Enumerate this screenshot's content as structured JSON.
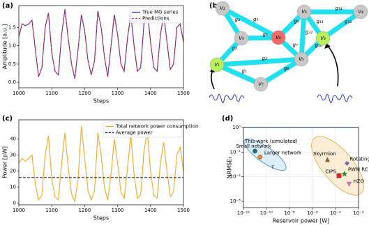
{
  "panels": [
    "(a)",
    "(b)",
    "(c)",
    "(d)"
  ],
  "chart_data": [
    {
      "type": "line",
      "xlabel": "Steps",
      "ylabel": "Amplitude [a.u.]",
      "legend": "upper right",
      "x": [
        1000,
        1010,
        1020,
        1030,
        1040,
        1050,
        1060,
        1070,
        1080,
        1090,
        1100,
        1110,
        1120,
        1130,
        1140,
        1150,
        1160,
        1170,
        1180,
        1190,
        1200,
        1210,
        1220,
        1230,
        1240,
        1250,
        1260,
        1270,
        1280,
        1290,
        1300,
        1310,
        1320,
        1330,
        1340,
        1350,
        1360,
        1370,
        1380,
        1390,
        1400,
        1410,
        1420,
        1430,
        1440,
        1450,
        1460,
        1470,
        1480,
        1490,
        1500
      ],
      "series": [
        {
          "name": "True MG series",
          "color": "#2020c8",
          "values": [
            1.25,
            1.6,
            1.55,
            1.6,
            1.7,
            0.9,
            0.15,
            0.4,
            1.5,
            1.9,
            0.8,
            0.3,
            0.2,
            1.3,
            2.0,
            1.2,
            0.5,
            0.1,
            0.9,
            1.85,
            1.4,
            0.6,
            0.2,
            0.6,
            1.95,
            1.5,
            0.7,
            0.15,
            1.0,
            1.85,
            1.3,
            0.5,
            0.3,
            1.2,
            1.85,
            1.0,
            0.3,
            0.4,
            1.6,
            2.0,
            1.1,
            0.4,
            0.3,
            1.3,
            1.85,
            1.1,
            0.35,
            0.5,
            1.5,
            1.6,
            1.1
          ]
        },
        {
          "name": "Predictions",
          "color": "#e8343a",
          "dashed": true,
          "values": [
            1.25,
            1.6,
            1.55,
            1.6,
            1.7,
            0.9,
            0.15,
            0.4,
            1.5,
            1.9,
            0.8,
            0.3,
            0.2,
            1.3,
            2.0,
            1.2,
            0.5,
            0.1,
            0.9,
            1.85,
            1.4,
            0.6,
            0.2,
            0.6,
            1.95,
            1.5,
            0.7,
            0.15,
            1.0,
            1.85,
            1.3,
            0.5,
            0.3,
            1.2,
            1.85,
            1.0,
            0.3,
            0.4,
            1.6,
            2.0,
            1.1,
            0.4,
            0.3,
            1.3,
            1.85,
            1.1,
            0.35,
            0.5,
            1.5,
            1.6,
            1.1
          ]
        }
      ],
      "xlim": [
        1000,
        1500
      ],
      "xticks": [
        1000,
        1100,
        1200,
        1300,
        1400,
        1500
      ],
      "ylim": [
        -0.15,
        2.1
      ],
      "yticks": [
        {
          "value": 0,
          "label": "0.0"
        },
        0.5,
        {
          "value": 1,
          "label": "1.0"
        },
        1.5
      ]
    },
    {
      "type": "line",
      "xlabel": "Steps",
      "ylabel": "Power [pW]",
      "legend": "upper right",
      "x": [
        1000,
        1010,
        1020,
        1030,
        1040,
        1050,
        1060,
        1070,
        1080,
        1090,
        1100,
        1110,
        1120,
        1130,
        1140,
        1150,
        1160,
        1170,
        1180,
        1190,
        1200,
        1210,
        1220,
        1230,
        1240,
        1250,
        1260,
        1270,
        1280,
        1290,
        1300,
        1310,
        1320,
        1330,
        1340,
        1350,
        1360,
        1370,
        1380,
        1390,
        1400,
        1410,
        1420,
        1430,
        1440,
        1450,
        1460,
        1470,
        1480,
        1490,
        1500
      ],
      "series": [
        {
          "name": "Total network power consumption",
          "color": "#f5a623",
          "values": [
            25,
            28,
            26,
            28,
            30,
            12,
            2,
            5,
            30,
            42,
            15,
            4,
            2,
            25,
            44,
            22,
            6,
            1,
            15,
            48,
            28,
            8,
            2,
            8,
            44,
            30,
            10,
            2,
            18,
            40,
            25,
            7,
            3,
            22,
            42,
            18,
            3,
            5,
            32,
            45,
            20,
            5,
            3,
            25,
            38,
            20,
            4,
            7,
            30,
            35,
            20
          ]
        }
      ],
      "reference_line": {
        "name": "Average power",
        "value": 16,
        "color": "#000000",
        "dashed": true
      },
      "xlim": [
        1000,
        1500
      ],
      "xticks": [
        1000,
        1100,
        1200,
        1300,
        1400,
        1500
      ],
      "ylim": [
        -1,
        52
      ],
      "yticks": [
        0,
        10,
        20,
        30,
        40
      ]
    },
    {
      "type": "scatter",
      "xlabel": "Reservoir power [W]",
      "ylabel": "NRMSE₁",
      "xscale": "log",
      "yscale": "log",
      "grid": true,
      "annotations": [
        "This work (simulated)",
        "?"
      ],
      "series": [
        {
          "name": "Small network",
          "color": "#17707e",
          "marker": "circle",
          "x": [
            1e-11
          ],
          "values": [
            0.11
          ]
        },
        {
          "name": "Larger network",
          "color": "#e8833a",
          "marker": "circle",
          "x": [
            2.8e-11
          ],
          "values": [
            0.063
          ]
        },
        {
          "name": "Skyrmion",
          "color": "#8c5a2e",
          "marker": "triangle",
          "x": [
            2e-05
          ],
          "values": [
            0.05
          ]
        },
        {
          "name": "Rotating neurons",
          "color": "#9b59b6",
          "marker": "diamond",
          "x": [
            0.001
          ],
          "values": [
            0.035
          ]
        },
        {
          "name": "CIPS",
          "color": "#d62728",
          "marker": "square",
          "x": [
            0.0002
          ],
          "values": [
            0.011
          ]
        },
        {
          "name": "PWM RC",
          "color": "#2ca02c",
          "marker": "star",
          "x": [
            0.0006
          ],
          "values": [
            0.013
          ]
        },
        {
          "name": "HZO",
          "color": "#e377c2",
          "marker": "triangle-down",
          "x": [
            0.0015
          ],
          "values": [
            0.005
          ]
        }
      ],
      "xlim": [
        1e-12,
        0.01
      ],
      "xticks": [
        {
          "value": 1e-12,
          "label": "10⁻¹²"
        },
        {
          "value": 1e-10,
          "label": "10⁻¹⁰"
        },
        {
          "value": 1e-08,
          "label": "10⁻⁸"
        },
        {
          "value": 1e-06,
          "label": "10⁻⁶"
        },
        {
          "value": 0.0001,
          "label": "10⁻⁴"
        },
        {
          "value": 0.01,
          "label": "10⁻²"
        }
      ],
      "ylim": [
        0.00056,
        1
      ],
      "yticks": [
        {
          "value": 0.001,
          "label": "10⁻³"
        },
        {
          "value": 0.01,
          "label": "10⁻²"
        },
        {
          "value": 0.1,
          "label": "10⁻¹"
        },
        {
          "value": 1,
          "label": "10⁰"
        }
      ]
    }
  ],
  "diagram": {
    "nodes": [
      "V₁",
      "V₂",
      "V₃",
      "V₄",
      "V₅",
      "V₆",
      "V₇",
      "V₈",
      "V₉"
    ],
    "edges": [
      "g₁",
      "g₂",
      "g₃",
      "g₄",
      "g₅",
      "g₆",
      "g₇",
      "g₈",
      "g₉",
      "g₁₀",
      "g₁₁",
      "g₁₂",
      "g₁₃",
      "g₁₄"
    ]
  }
}
